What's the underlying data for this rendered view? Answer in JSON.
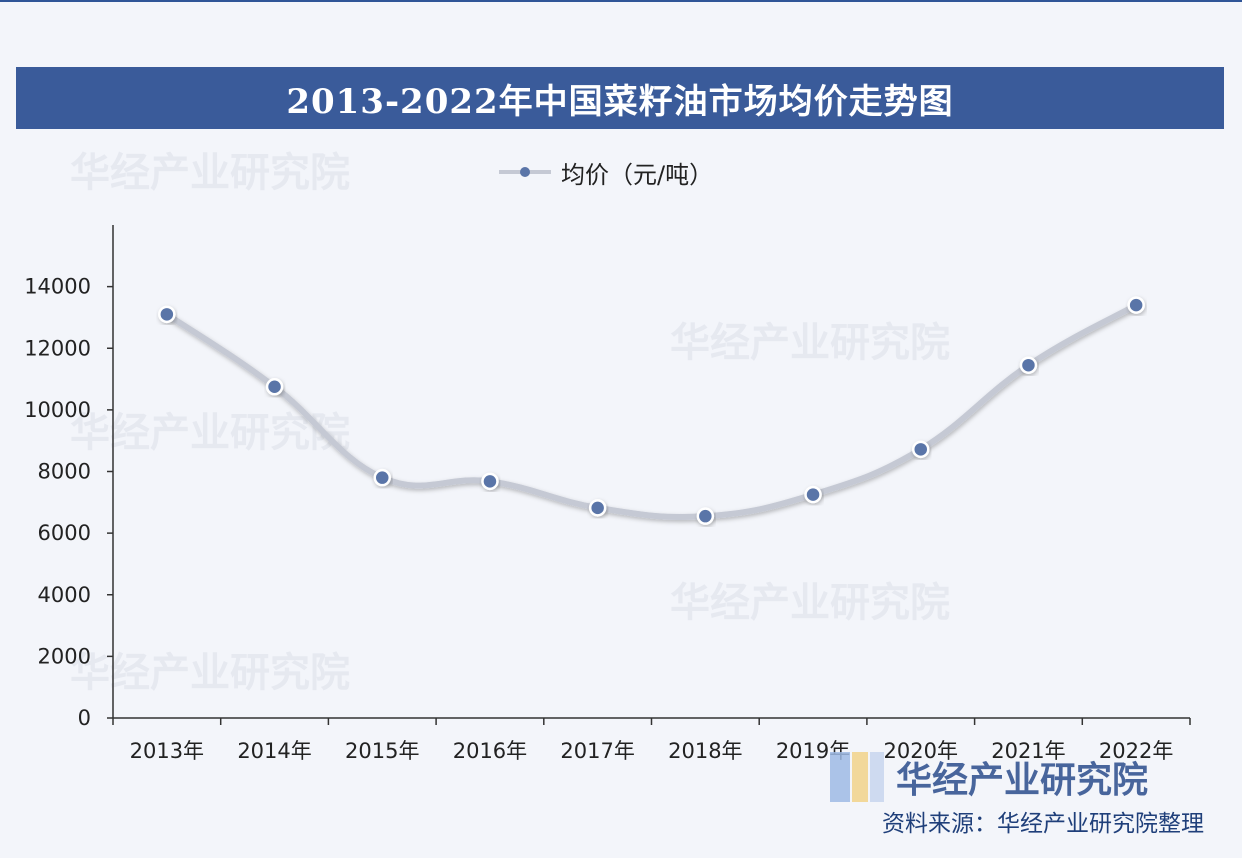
{
  "title": "2013-2022年中国菜籽油市场均价走势图",
  "legend_label": "均价（元/吨）",
  "source": "资料来源：华经产业研究院整理",
  "brand_name": "华经产业研究院",
  "watermark_text": "华经产业研究院",
  "colors": {
    "title_bar": "#3a5b9a",
    "line": "#c5c9d4",
    "marker": "#5a75a8",
    "marker_edge": "#ffffff"
  },
  "chart_data": {
    "type": "line",
    "categories": [
      "2013年",
      "2014年",
      "2015年",
      "2016年",
      "2017年",
      "2018年",
      "2019年",
      "2020年",
      "2021年",
      "2022年"
    ],
    "series": [
      {
        "name": "均价（元/吨）",
        "values": [
          13100,
          10750,
          7800,
          7680,
          6820,
          6550,
          7250,
          8720,
          11450,
          13400
        ]
      }
    ],
    "yticks": [
      0,
      2000,
      4000,
      6000,
      8000,
      10000,
      12000,
      14000
    ],
    "ylim": [
      0,
      16000
    ],
    "smooth": true,
    "grid": false,
    "legend_position": "top-center"
  }
}
